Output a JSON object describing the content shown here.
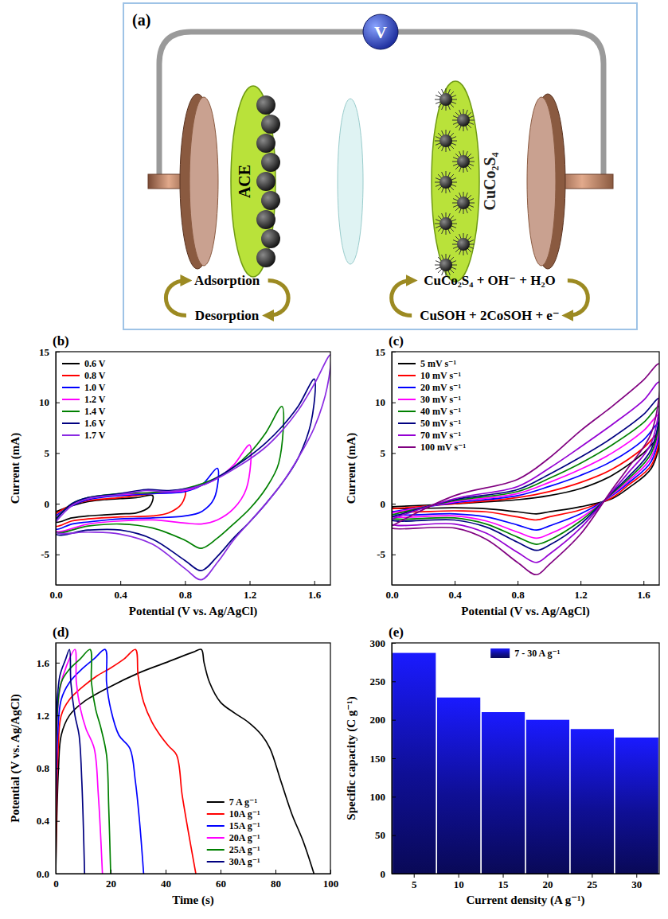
{
  "diagram": {
    "label": "(a)",
    "meter": "V",
    "left_electrode": "ACE",
    "right_electrode": "CuCo₂S₄",
    "left_process": [
      "Adsorption",
      "Desorption"
    ],
    "right_process": [
      "CuCo₂S₄ + OH⁻ + H₂O",
      "CuSOH + 2CoSOH + e⁻"
    ]
  },
  "chart_data": [
    {
      "type": "line",
      "title": "(b)",
      "x_label": "Potential (V vs. Ag/AgCl)",
      "y_label": "Current (mA)",
      "xlim": [
        0,
        1.7
      ],
      "xticks": [
        {
          "value": 0,
          "label": "0.0"
        },
        0.4,
        0.8,
        1.2,
        1.6
      ],
      "ylim": [
        -8,
        15
      ],
      "yticks": [
        -5,
        0,
        5,
        10,
        15
      ],
      "grid": false,
      "legend": "upper left",
      "series": [
        {
          "name": "0.6 V",
          "color": "#000000",
          "x": [
            0,
            0.1,
            0.2,
            0.3,
            0.4,
            0.5,
            0.6,
            0.58,
            0.5,
            0.4,
            0.3,
            0.2,
            0.1,
            0,
            0
          ],
          "values": [
            -0.8,
            -0.2,
            0.2,
            0.4,
            0.5,
            0.6,
            0.8,
            -0.3,
            -0.9,
            -1.0,
            -1.1,
            -1.2,
            -1.4,
            -1.8,
            -0.8
          ]
        },
        {
          "name": "0.8 V",
          "color": "#ff0000",
          "x": [
            0,
            0.1,
            0.2,
            0.4,
            0.6,
            0.7,
            0.8,
            0.78,
            0.7,
            0.6,
            0.4,
            0.2,
            0.1,
            0,
            0
          ],
          "values": [
            -1.0,
            -0.1,
            0.3,
            0.6,
            1.0,
            1.1,
            1.3,
            0,
            -0.9,
            -1.2,
            -1.3,
            -1.5,
            -1.7,
            -2.2,
            -1.0
          ]
        },
        {
          "name": "1.0 V",
          "color": "#0000ff",
          "x": [
            0,
            0.1,
            0.2,
            0.4,
            0.6,
            0.8,
            0.9,
            1.0,
            0.98,
            0.9,
            0.8,
            0.6,
            0.4,
            0.2,
            0.1,
            0,
            0
          ],
          "values": [
            -1.2,
            -0.2,
            0.4,
            0.8,
            1.0,
            1.2,
            1.8,
            3.5,
            0.5,
            -0.8,
            -1.2,
            -1.4,
            -1.5,
            -1.8,
            -2.0,
            -2.5,
            -1.2
          ]
        },
        {
          "name": "1.2 V",
          "color": "#ff00ff",
          "x": [
            0,
            0.1,
            0.2,
            0.4,
            0.6,
            0.8,
            0.9,
            1.0,
            1.1,
            1.2,
            1.18,
            1.1,
            1.0,
            0.9,
            0.8,
            0.6,
            0.4,
            0.2,
            0,
            0
          ],
          "values": [
            -1.4,
            -0.1,
            0.5,
            0.9,
            1.1,
            1.3,
            1.8,
            2.5,
            3.8,
            5.8,
            1.5,
            -0.5,
            -1.6,
            -2.0,
            -1.9,
            -1.6,
            -1.7,
            -2.0,
            -2.7,
            -1.4
          ]
        },
        {
          "name": "1.4 V",
          "color": "#008000",
          "x": [
            0,
            0.1,
            0.2,
            0.4,
            0.6,
            0.8,
            1.0,
            1.1,
            1.2,
            1.3,
            1.4,
            1.38,
            1.3,
            1.2,
            1.1,
            1.0,
            0.9,
            0.8,
            0.6,
            0.4,
            0.2,
            0,
            0
          ],
          "values": [
            -1.5,
            0,
            0.6,
            1.0,
            1.1,
            1.5,
            2.6,
            3.6,
            5.0,
            7.0,
            9.6,
            4.0,
            1.5,
            -0.5,
            -2.0,
            -3.4,
            -4.4,
            -3.6,
            -2.4,
            -2.0,
            -2.2,
            -2.8,
            -1.5
          ]
        },
        {
          "name": "1.6 V",
          "color": "#000080",
          "x": [
            0,
            0.1,
            0.2,
            0.4,
            0.56,
            0.7,
            0.9,
            1.0,
            1.1,
            1.2,
            1.3,
            1.4,
            1.5,
            1.6,
            1.58,
            1.5,
            1.4,
            1.3,
            1.2,
            1.1,
            1.0,
            0.9,
            0.8,
            0.6,
            0.4,
            0.2,
            0,
            0
          ],
          "values": [
            -1.6,
            0,
            0.6,
            1.0,
            1.4,
            1.3,
            1.8,
            2.6,
            3.6,
            4.7,
            6.0,
            7.6,
            9.6,
            12.3,
            8.0,
            4.5,
            2.0,
            0,
            -1.8,
            -3.4,
            -5.2,
            -6.6,
            -5.6,
            -3.5,
            -2.6,
            -2.6,
            -3.0,
            -1.6
          ]
        },
        {
          "name": "1.7 V",
          "color": "#8a2be2",
          "x": [
            0,
            0.1,
            0.2,
            0.4,
            0.56,
            0.7,
            0.9,
            1.0,
            1.1,
            1.2,
            1.3,
            1.4,
            1.5,
            1.6,
            1.7,
            1.68,
            1.6,
            1.5,
            1.4,
            1.3,
            1.2,
            1.1,
            1.0,
            0.9,
            0.8,
            0.6,
            0.4,
            0.2,
            0,
            0
          ],
          "values": [
            -1.8,
            -0.2,
            0.5,
            0.9,
            1.3,
            1.2,
            1.8,
            2.5,
            3.4,
            4.4,
            5.6,
            7.2,
            9.2,
            11.8,
            14.7,
            11.5,
            7.5,
            4.5,
            2.0,
            0,
            -1.8,
            -3.6,
            -5.8,
            -7.5,
            -6.4,
            -4.0,
            -3.0,
            -2.8,
            -2.8,
            -1.8
          ]
        }
      ]
    },
    {
      "type": "line",
      "title": "(c)",
      "x_label": "Potential (V vs. Ag/AgCl)",
      "y_label": "Current (mA)",
      "xlim": [
        0,
        1.7
      ],
      "xticks": [
        {
          "value": 0,
          "label": "0.0"
        },
        0.4,
        0.8,
        1.2,
        1.6
      ],
      "ylim": [
        -8,
        15
      ],
      "yticks": [
        -5,
        0,
        5,
        10,
        15
      ],
      "grid": false,
      "legend": "upper left",
      "series": [
        {
          "name": "5 mV s⁻¹",
          "color": "#000000",
          "x": [
            0,
            0.4,
            0.8,
            1.0,
            1.2,
            1.4,
            1.6,
            1.7,
            1.65,
            1.5,
            1.4,
            1.2,
            1.0,
            0.92,
            0.8,
            0.6,
            0.4,
            0,
            0
          ],
          "values": [
            -0.3,
            0,
            0.4,
            0.8,
            1.5,
            2.8,
            5.0,
            6.5,
            3.5,
            1.5,
            0.5,
            -0.3,
            -0.8,
            -1.0,
            -0.8,
            -0.5,
            -0.4,
            -0.4,
            -0.3
          ]
        },
        {
          "name": "10 mV s⁻¹",
          "color": "#ff0000",
          "x": [
            0,
            0.4,
            0.8,
            1.0,
            1.2,
            1.4,
            1.6,
            1.7,
            1.65,
            1.5,
            1.4,
            1.2,
            1.0,
            0.92,
            0.8,
            0.6,
            0.4,
            0,
            0
          ],
          "values": [
            -0.5,
            0,
            0.6,
            1.2,
            2.1,
            3.4,
            5.5,
            7.0,
            3.8,
            1.8,
            0.6,
            -0.6,
            -1.3,
            -1.6,
            -1.3,
            -0.8,
            -0.7,
            -0.7,
            -0.5
          ]
        },
        {
          "name": "20 mV s⁻¹",
          "color": "#0000ff",
          "x": [
            0,
            0.4,
            0.8,
            1.0,
            1.2,
            1.4,
            1.6,
            1.7,
            1.65,
            1.5,
            1.4,
            1.2,
            1.0,
            0.92,
            0.8,
            0.6,
            0.4,
            0,
            0
          ],
          "values": [
            -0.8,
            0.1,
            0.8,
            1.7,
            2.8,
            4.2,
            6.3,
            8.0,
            4.2,
            2.0,
            0.8,
            -1.0,
            -2.2,
            -2.6,
            -2.1,
            -1.3,
            -1.0,
            -1.0,
            -0.8
          ]
        },
        {
          "name": "30 mV s⁻¹",
          "color": "#ff00ff",
          "x": [
            0,
            0.4,
            0.8,
            1.0,
            1.2,
            1.4,
            1.6,
            1.7,
            1.65,
            1.5,
            1.4,
            1.2,
            1.0,
            0.92,
            0.8,
            0.6,
            0.4,
            0,
            0
          ],
          "values": [
            -0.9,
            0.2,
            1.0,
            2.1,
            3.4,
            5.0,
            7.2,
            8.8,
            4.6,
            2.2,
            0.9,
            -1.4,
            -3.0,
            -3.4,
            -2.8,
            -1.7,
            -1.2,
            -1.2,
            -0.9
          ]
        },
        {
          "name": "40 mV s⁻¹",
          "color": "#008000",
          "x": [
            0,
            0.4,
            0.8,
            1.0,
            1.2,
            1.4,
            1.6,
            1.7,
            1.65,
            1.5,
            1.4,
            1.2,
            1.0,
            0.92,
            0.8,
            0.6,
            0.4,
            0,
            0
          ],
          "values": [
            -1.1,
            0.3,
            1.2,
            2.5,
            4.0,
            5.8,
            8.0,
            9.6,
            5.0,
            2.4,
            1.0,
            -1.7,
            -3.6,
            -4.0,
            -3.3,
            -2.0,
            -1.4,
            -1.4,
            -1.1
          ]
        },
        {
          "name": "50 mV s⁻¹",
          "color": "#000080",
          "x": [
            0,
            0.4,
            0.8,
            1.0,
            1.2,
            1.4,
            1.6,
            1.7,
            1.65,
            1.5,
            1.4,
            1.2,
            1.0,
            0.92,
            0.8,
            0.6,
            0.4,
            0,
            0
          ],
          "values": [
            -1.3,
            0.4,
            1.4,
            2.9,
            4.6,
            6.5,
            8.8,
            10.4,
            5.4,
            2.6,
            1.1,
            -2.0,
            -4.1,
            -4.6,
            -3.8,
            -2.3,
            -1.6,
            -1.6,
            -1.3
          ]
        },
        {
          "name": "70 mV s⁻¹",
          "color": "#9400d3",
          "x": [
            0,
            0.4,
            0.8,
            1.0,
            1.2,
            1.4,
            1.6,
            1.7,
            1.65,
            1.5,
            1.4,
            1.2,
            1.0,
            0.92,
            0.8,
            0.6,
            0.4,
            0,
            0
          ],
          "values": [
            -1.5,
            0.5,
            1.7,
            3.5,
            5.6,
            7.8,
            10.2,
            12.0,
            6.0,
            3.0,
            1.2,
            -2.4,
            -5.0,
            -5.8,
            -4.8,
            -2.9,
            -2.0,
            -2.0,
            -1.5
          ]
        },
        {
          "name": "100 mV s⁻¹",
          "color": "#800080",
          "x": [
            0,
            0.4,
            0.8,
            1.0,
            1.2,
            1.4,
            1.6,
            1.7,
            1.65,
            1.5,
            1.4,
            1.2,
            1.0,
            0.92,
            0.8,
            0.6,
            0.4,
            0,
            0
          ],
          "values": [
            -2.2,
            0.8,
            2.4,
            4.5,
            7.2,
            9.6,
            12.2,
            13.8,
            7.0,
            3.5,
            1.4,
            -3.0,
            -6.0,
            -7.0,
            -5.8,
            -3.5,
            -2.4,
            -2.4,
            -2.2
          ]
        }
      ]
    },
    {
      "type": "line",
      "title": "(d)",
      "x_label": "Time (s)",
      "y_label": "Potential (V vs. Ag/AgCl)",
      "xlim": [
        0,
        100
      ],
      "xticks": [
        0,
        20,
        40,
        60,
        80,
        100
      ],
      "ylim": [
        0,
        1.75
      ],
      "yticks": [
        {
          "value": 0,
          "label": "0.0"
        },
        0.4,
        0.8,
        1.2,
        1.6
      ],
      "grid": false,
      "legend": "lower right",
      "series": [
        {
          "name": "7 A g⁻¹",
          "color": "#000000",
          "x": [
            0,
            1,
            2,
            5,
            10,
            20,
            30,
            40,
            50,
            53,
            54,
            56,
            60,
            65,
            70,
            75,
            78,
            82,
            86,
            90,
            94
          ],
          "values": [
            0,
            0.8,
            1.05,
            1.2,
            1.3,
            1.42,
            1.52,
            1.6,
            1.68,
            1.7,
            1.6,
            1.45,
            1.3,
            1.22,
            1.15,
            1.05,
            0.95,
            0.7,
            0.45,
            0.25,
            0
          ]
        },
        {
          "name": "10A g⁻¹",
          "color": "#ff0000",
          "x": [
            0,
            0.8,
            2,
            5,
            10,
            15,
            20,
            25,
            29,
            30,
            32,
            35,
            38,
            41,
            44,
            46,
            48,
            51
          ],
          "values": [
            0,
            0.9,
            1.2,
            1.32,
            1.42,
            1.5,
            1.56,
            1.63,
            1.7,
            1.5,
            1.3,
            1.15,
            1.05,
            0.97,
            0.9,
            0.6,
            0.35,
            0
          ]
        },
        {
          "name": "15A g⁻¹",
          "color": "#0000ff",
          "x": [
            0,
            0.6,
            2,
            5,
            10,
            14,
            18,
            18.5,
            20,
            23,
            27,
            29,
            30.5,
            32
          ],
          "values": [
            0,
            1.0,
            1.32,
            1.45,
            1.56,
            1.63,
            1.7,
            1.45,
            1.25,
            1.05,
            0.95,
            0.7,
            0.4,
            0
          ]
        },
        {
          "name": "20A g⁻¹",
          "color": "#ff00ff",
          "x": [
            0,
            0.4,
            1.5,
            4,
            7,
            7.5,
            9,
            11,
            14,
            15.5,
            17
          ],
          "values": [
            0,
            1.1,
            1.4,
            1.58,
            1.7,
            1.45,
            1.25,
            1.1,
            0.95,
            0.6,
            0
          ]
        },
        {
          "name": "25A g⁻¹",
          "color": "#008000",
          "x": [
            0,
            0.4,
            2,
            5,
            9,
            12.5,
            13,
            14.5,
            16.5,
            18.5,
            19.3,
            20
          ],
          "values": [
            0,
            1.15,
            1.45,
            1.55,
            1.63,
            1.7,
            1.45,
            1.25,
            1.1,
            0.9,
            0.5,
            0
          ]
        },
        {
          "name": "30A g⁻¹",
          "color": "#000080",
          "x": [
            0,
            0.3,
            1.5,
            3.5,
            5,
            5.5,
            7,
            8.5,
            9.5,
            10.5
          ],
          "values": [
            0,
            1.2,
            1.5,
            1.62,
            1.7,
            1.45,
            1.2,
            1.05,
            0.7,
            0
          ]
        }
      ]
    },
    {
      "type": "bar",
      "title": "(e)",
      "x_label": "Current density (A g⁻¹)",
      "y_label": "Specific capacity (C g⁻¹)",
      "categories": [
        5,
        10,
        15,
        20,
        25,
        30
      ],
      "series": [
        {
          "name": "7 - 30 A g⁻¹",
          "color": "#1a1aff",
          "values": [
            287,
            229,
            210,
            200,
            188,
            177
          ]
        }
      ],
      "ylim": [
        0,
        300
      ],
      "yticks": [
        0,
        50,
        100,
        150,
        200,
        250,
        300
      ],
      "grid": false,
      "legend": "top"
    }
  ]
}
